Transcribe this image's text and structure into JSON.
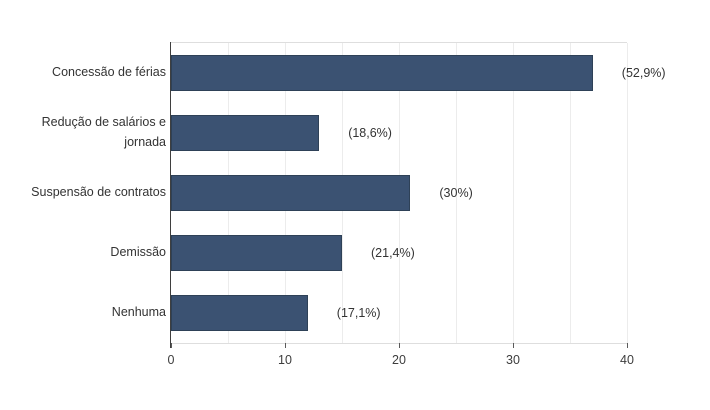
{
  "chart_data": {
    "type": "bar",
    "orientation": "horizontal",
    "title": "",
    "xlabel": "",
    "ylabel": "",
    "categories": [
      "Concessão de férias",
      "Redução de salários e jornada",
      "Suspensão de contratos",
      "Demissão",
      "Nenhuma"
    ],
    "values": [
      37,
      13,
      21,
      15,
      12
    ],
    "value_labels": [
      "(52,9%)",
      "(18,6%)",
      "(30%)",
      "(21,4%)",
      "(17,1%)"
    ],
    "x_ticks": [
      "0",
      "10",
      "20",
      "30",
      "40"
    ],
    "x_tick_values": [
      0,
      10,
      20,
      30,
      40
    ],
    "xlim": [
      0,
      40
    ],
    "gridline_step": 5,
    "grid_on": true,
    "legend": "none",
    "colors": {
      "bar_fill": "#3b5272",
      "bar_border": "#2e4157",
      "gridline": "#ececec",
      "plot_border": "#dedede",
      "y_axis_line": "#3f3f3f",
      "tick_mark": "#5a5a5a",
      "text": "#333333",
      "background": "#ffffff"
    }
  }
}
